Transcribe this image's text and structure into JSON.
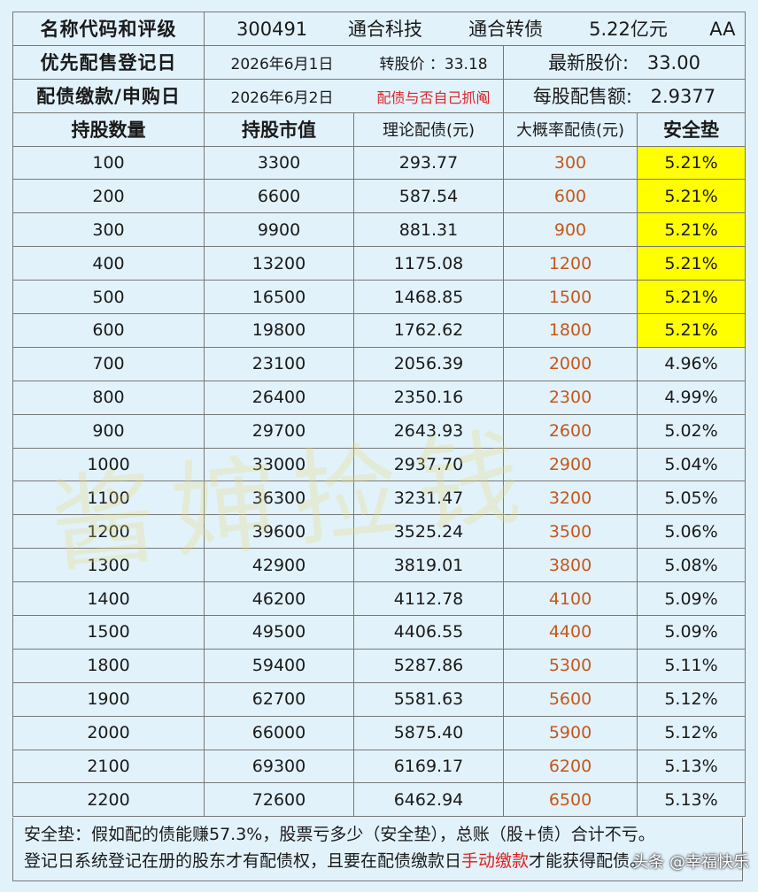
{
  "info": {
    "row1_label": "名称代码和评级",
    "code": "300491",
    "stock_name": "通合科技",
    "bond_name": "通合转债",
    "scale": "5.22亿元",
    "rating": "AA",
    "row2_label": "优先配售登记日",
    "record_date": "2026年6月1日",
    "conv_price": "转股价 ：33.18",
    "latest_price_label": "最新股价:",
    "latest_price": "33.00",
    "row3_label": "配债缴款/申购日",
    "pay_date": "2026年6月2日",
    "note": "配债与否自己抓阄",
    "per_share_label": "每股配售额:",
    "per_share": "2.9377"
  },
  "table": {
    "headers": [
      "持股数量",
      "持股市值",
      "理论配债(元)",
      "大概率配债(元)",
      "安全垫"
    ],
    "rows": [
      [
        "100",
        "3300",
        "293.77",
        "300",
        "5.21%"
      ],
      [
        "200",
        "6600",
        "587.54",
        "600",
        "5.21%"
      ],
      [
        "300",
        "9900",
        "881.31",
        "900",
        "5.21%"
      ],
      [
        "400",
        "13200",
        "1175.08",
        "1200",
        "5.21%"
      ],
      [
        "500",
        "16500",
        "1468.85",
        "1500",
        "5.21%"
      ],
      [
        "600",
        "19800",
        "1762.62",
        "1800",
        "5.21%"
      ],
      [
        "700",
        "23100",
        "2056.39",
        "2000",
        "4.96%"
      ],
      [
        "800",
        "26400",
        "2350.16",
        "2300",
        "4.99%"
      ],
      [
        "900",
        "29700",
        "2643.93",
        "2600",
        "5.02%"
      ],
      [
        "1000",
        "33000",
        "2937.70",
        "2900",
        "5.04%"
      ],
      [
        "1100",
        "36300",
        "3231.47",
        "3200",
        "5.05%"
      ],
      [
        "1200",
        "39600",
        "3525.24",
        "3500",
        "5.06%"
      ],
      [
        "1300",
        "42900",
        "3819.01",
        "3800",
        "5.08%"
      ],
      [
        "1400",
        "46200",
        "4112.78",
        "4100",
        "5.09%"
      ],
      [
        "1500",
        "49500",
        "4406.55",
        "4400",
        "5.09%"
      ],
      [
        "1800",
        "59400",
        "5287.86",
        "5300",
        "5.11%"
      ],
      [
        "1900",
        "62700",
        "5581.63",
        "5600",
        "5.12%"
      ],
      [
        "2000",
        "66000",
        "5875.40",
        "5900",
        "5.12%"
      ],
      [
        "2100",
        "69300",
        "6169.17",
        "6200",
        "5.13%"
      ],
      [
        "2200",
        "72600",
        "6462.94",
        "6500",
        "5.13%"
      ]
    ],
    "highlight_color": "#ffff00",
    "highlight_rows": 6
  },
  "footer": {
    "line1": "安全垫：假如配的债能赚57.3%，股票亏多少（安全垫），总账（股+债）合计不亏。",
    "line2_a": "登记日系统登记在册的股东才有配债权，且要在配债缴款日",
    "line2_red": "手动缴款",
    "line2_b": "才能获得配债。"
  },
  "watermark": "酱婶捡钱",
  "credit": "头条 @幸福快乐"
}
